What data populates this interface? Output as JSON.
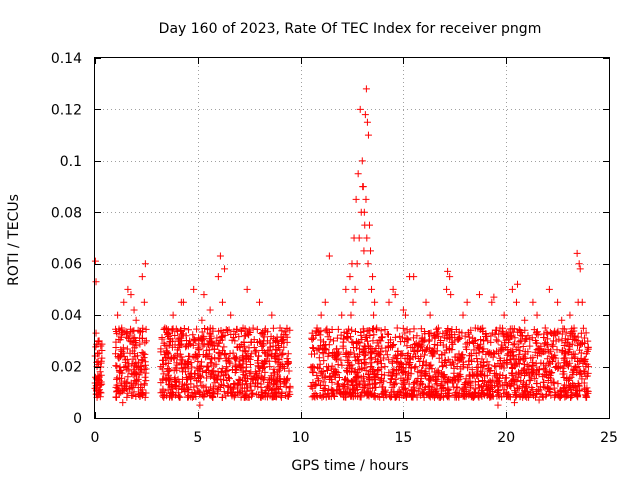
{
  "chart_data": {
    "type": "scatter",
    "title": "Day 160 of 2023, Rate Of TEC Index for receiver pngm",
    "xlabel": "GPS time / hours",
    "ylabel": "ROTI / TECUs",
    "xlim": [
      0,
      25
    ],
    "ylim": [
      0,
      0.14
    ],
    "xticks": [
      0,
      5,
      10,
      15,
      20,
      25
    ],
    "xtick_labels": [
      "0",
      "5",
      "10",
      "15",
      "20",
      "25"
    ],
    "yticks": [
      0,
      0.02,
      0.04,
      0.06,
      0.08,
      0.1,
      0.12,
      0.14
    ],
    "ytick_labels": [
      "0",
      "0.02",
      "0.04",
      "0.06",
      "0.08",
      "0.1",
      "0.12",
      "0.14"
    ],
    "grid": true,
    "marker": "+",
    "color": "#ff0000",
    "series": [
      {
        "name": "ROTI",
        "x": [
          0.02,
          0.05,
          0.08,
          0.1,
          0.12,
          0.15,
          0.18,
          0.2,
          0.22,
          0.25,
          0.28,
          0.3,
          0.05,
          0.1,
          0.15,
          0.2,
          0.25,
          1.0,
          1.1,
          1.2,
          1.3,
          1.4,
          1.5,
          1.6,
          1.7,
          1.8,
          1.9,
          2.0,
          2.1,
          2.3,
          2.4,
          2.5,
          2.45,
          2.35,
          2.2,
          1.35,
          1.55,
          1.75,
          1.05,
          1.25,
          3.2,
          3.4,
          3.6,
          3.8,
          4.0,
          4.2,
          4.4,
          4.6,
          4.8,
          5.0,
          5.2,
          5.4,
          5.6,
          5.8,
          6.0,
          6.2,
          6.4,
          6.6,
          6.8,
          7.0,
          7.2,
          7.4,
          7.6,
          7.8,
          8.0,
          8.2,
          8.4,
          8.6,
          8.8,
          9.0,
          9.2,
          9.4,
          3.3,
          3.7,
          4.1,
          4.5,
          4.9,
          5.3,
          5.7,
          6.1,
          6.3,
          6.5,
          6.9,
          7.3,
          7.7,
          8.1,
          8.5,
          8.9,
          9.3,
          3.5,
          4.3,
          5.1,
          5.5,
          5.9,
          6.7,
          7.5,
          8.3,
          9.1,
          10.6,
          10.8,
          11.0,
          11.2,
          11.4,
          11.6,
          11.8,
          12.0,
          12.2,
          12.4,
          12.5,
          12.6,
          12.7,
          12.8,
          12.9,
          13.0,
          13.05,
          13.1,
          13.15,
          13.2,
          13.25,
          13.3,
          13.35,
          13.4,
          13.5,
          13.6,
          13.7,
          13.8,
          12.65,
          12.75,
          12.85,
          12.95,
          13.02,
          13.08,
          13.12,
          13.18,
          13.22,
          13.28,
          12.55,
          12.45,
          13.45,
          13.55,
          11.1,
          11.5,
          11.9,
          12.3,
          13.9,
          14.1,
          14.3,
          14.5,
          14.7,
          14.9,
          15.1,
          15.3,
          15.5,
          15.7,
          15.9,
          16.1,
          16.3,
          16.5,
          16.7,
          16.9,
          17.1,
          17.3,
          17.5,
          17.7,
          17.9,
          18.1,
          18.3,
          18.5,
          18.7,
          18.9,
          14.0,
          14.4,
          14.8,
          15.2,
          15.6,
          16.0,
          16.4,
          16.8,
          17.2,
          17.6,
          18.0,
          18.4,
          18.8,
          17.15,
          17.25,
          14.6,
          15.0,
          19.1,
          19.3,
          19.5,
          19.7,
          19.9,
          20.1,
          20.3,
          20.5,
          20.7,
          20.9,
          21.1,
          21.3,
          21.5,
          21.7,
          21.9,
          22.1,
          22.3,
          22.5,
          22.7,
          22.9,
          23.1,
          23.3,
          23.5,
          23.7,
          23.9,
          24.0,
          19.2,
          19.6,
          20.0,
          20.4,
          20.8,
          21.2,
          21.6,
          22.0,
          22.4,
          22.8,
          23.2,
          23.45,
          23.55,
          23.6,
          23.5,
          19.4,
          20.55
        ],
        "y": [
          0.061,
          0.033,
          0.012,
          0.02,
          0.025,
          0.009,
          0.015,
          0.03,
          0.011,
          0.018,
          0.028,
          0.014,
          0.053,
          0.008,
          0.022,
          0.016,
          0.01,
          0.025,
          0.04,
          0.018,
          0.035,
          0.045,
          0.02,
          0.05,
          0.03,
          0.012,
          0.042,
          0.038,
          0.015,
          0.055,
          0.045,
          0.03,
          0.06,
          0.025,
          0.02,
          0.006,
          0.008,
          0.048,
          0.015,
          0.01,
          0.02,
          0.035,
          0.015,
          0.04,
          0.025,
          0.045,
          0.018,
          0.03,
          0.05,
          0.022,
          0.038,
          0.012,
          0.042,
          0.028,
          0.055,
          0.045,
          0.02,
          0.04,
          0.03,
          0.015,
          0.035,
          0.05,
          0.025,
          0.018,
          0.045,
          0.03,
          0.012,
          0.04,
          0.022,
          0.035,
          0.015,
          0.025,
          0.01,
          0.012,
          0.008,
          0.015,
          0.03,
          0.048,
          0.01,
          0.063,
          0.058,
          0.012,
          0.02,
          0.008,
          0.015,
          0.01,
          0.02,
          0.018,
          0.012,
          0.028,
          0.045,
          0.005,
          0.02,
          0.015,
          0.01,
          0.008,
          0.025,
          0.03,
          0.02,
          0.035,
          0.04,
          0.045,
          0.063,
          0.03,
          0.025,
          0.04,
          0.05,
          0.055,
          0.06,
          0.07,
          0.085,
          0.095,
          0.12,
          0.1,
          0.09,
          0.08,
          0.118,
          0.128,
          0.115,
          0.11,
          0.075,
          0.065,
          0.055,
          0.045,
          0.035,
          0.025,
          0.05,
          0.06,
          0.07,
          0.08,
          0.09,
          0.065,
          0.075,
          0.085,
          0.07,
          0.06,
          0.045,
          0.04,
          0.05,
          0.04,
          0.025,
          0.015,
          0.01,
          0.012,
          0.03,
          0.02,
          0.045,
          0.05,
          0.035,
          0.025,
          0.04,
          0.055,
          0.055,
          0.018,
          0.03,
          0.045,
          0.04,
          0.025,
          0.035,
          0.02,
          0.05,
          0.048,
          0.03,
          0.015,
          0.04,
          0.045,
          0.025,
          0.035,
          0.048,
          0.03,
          0.012,
          0.01,
          0.008,
          0.015,
          0.02,
          0.01,
          0.012,
          0.008,
          0.015,
          0.01,
          0.012,
          0.008,
          0.01,
          0.057,
          0.055,
          0.048,
          0.042,
          0.03,
          0.045,
          0.02,
          0.035,
          0.04,
          0.025,
          0.05,
          0.045,
          0.03,
          0.038,
          0.02,
          0.045,
          0.04,
          0.025,
          0.035,
          0.05,
          0.03,
          0.045,
          0.038,
          0.025,
          0.04,
          0.035,
          0.03,
          0.045,
          0.025,
          0.02,
          0.008,
          0.005,
          0.01,
          0.006,
          0.008,
          0.01,
          0.007,
          0.012,
          0.009,
          0.01,
          0.012,
          0.064,
          0.06,
          0.058,
          0.045,
          0.047,
          0.052
        ]
      }
    ],
    "dense_bands": [
      {
        "x_start": 0.0,
        "x_end": 0.35,
        "y_low": 0.008,
        "y_high": 0.03
      },
      {
        "x_start": 1.0,
        "x_end": 2.5,
        "y_low": 0.008,
        "y_high": 0.035
      },
      {
        "x_start": 3.2,
        "x_end": 9.5,
        "y_low": 0.008,
        "y_high": 0.035
      },
      {
        "x_start": 10.5,
        "x_end": 24.0,
        "y_low": 0.008,
        "y_high": 0.035
      }
    ]
  }
}
